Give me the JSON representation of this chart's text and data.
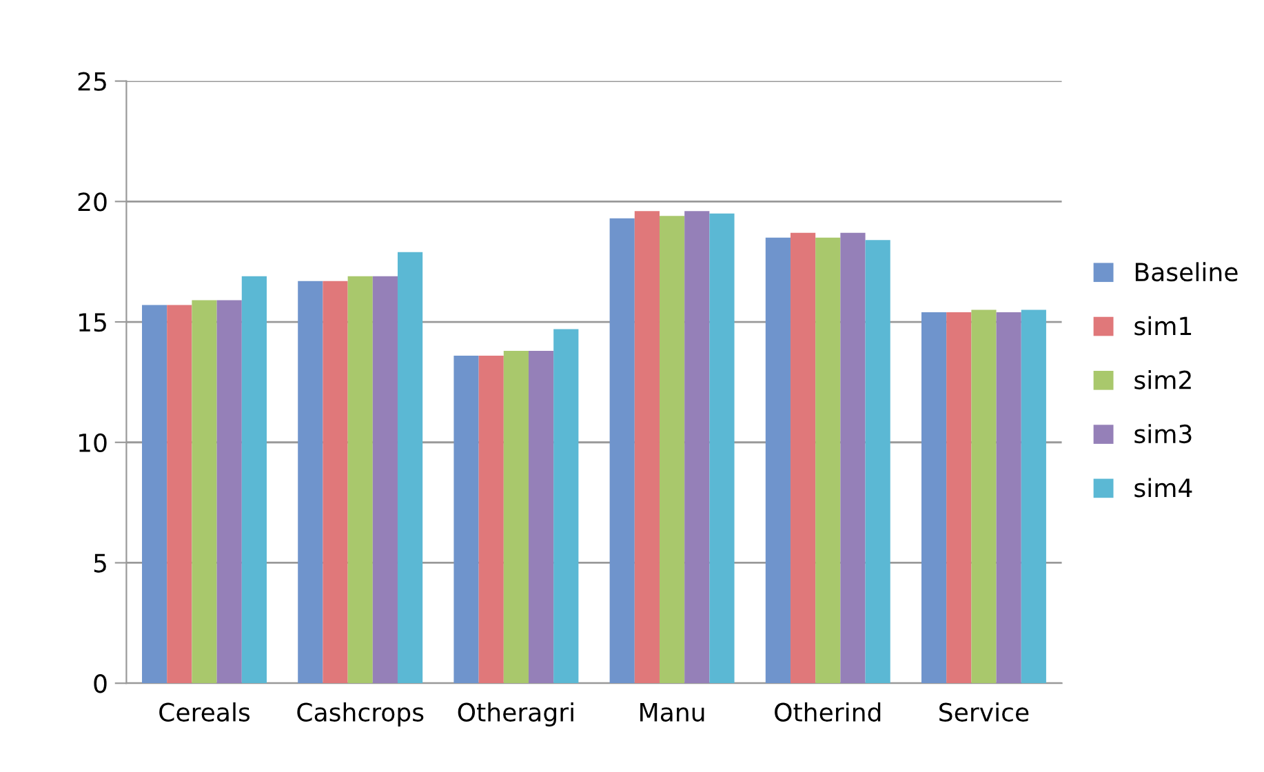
{
  "chart_data": {
    "type": "bar",
    "categories": [
      "Cereals",
      "Cashcrops",
      "Otheragri",
      "Manu",
      "Otherind",
      "Service"
    ],
    "series": [
      {
        "name": "Baseline",
        "color": "#6f94cc",
        "values": [
          15.7,
          16.7,
          13.6,
          19.3,
          18.5,
          15.4
        ]
      },
      {
        "name": "sim1",
        "color": "#e0787a",
        "values": [
          15.7,
          16.7,
          13.6,
          19.6,
          18.7,
          15.4
        ]
      },
      {
        "name": "sim2",
        "color": "#a9c86c",
        "values": [
          15.9,
          16.9,
          13.8,
          19.4,
          18.5,
          15.5
        ]
      },
      {
        "name": "sim3",
        "color": "#9580b8",
        "values": [
          15.9,
          16.9,
          13.8,
          19.6,
          18.7,
          15.4
        ]
      },
      {
        "name": "sim4",
        "color": "#5bb8d4",
        "values": [
          16.9,
          17.9,
          14.7,
          19.5,
          18.4,
          15.5
        ]
      }
    ],
    "ylim": [
      0,
      25
    ],
    "yticks": [
      0,
      5,
      10,
      15,
      20,
      25
    ],
    "grid": "y",
    "legend": "right"
  }
}
